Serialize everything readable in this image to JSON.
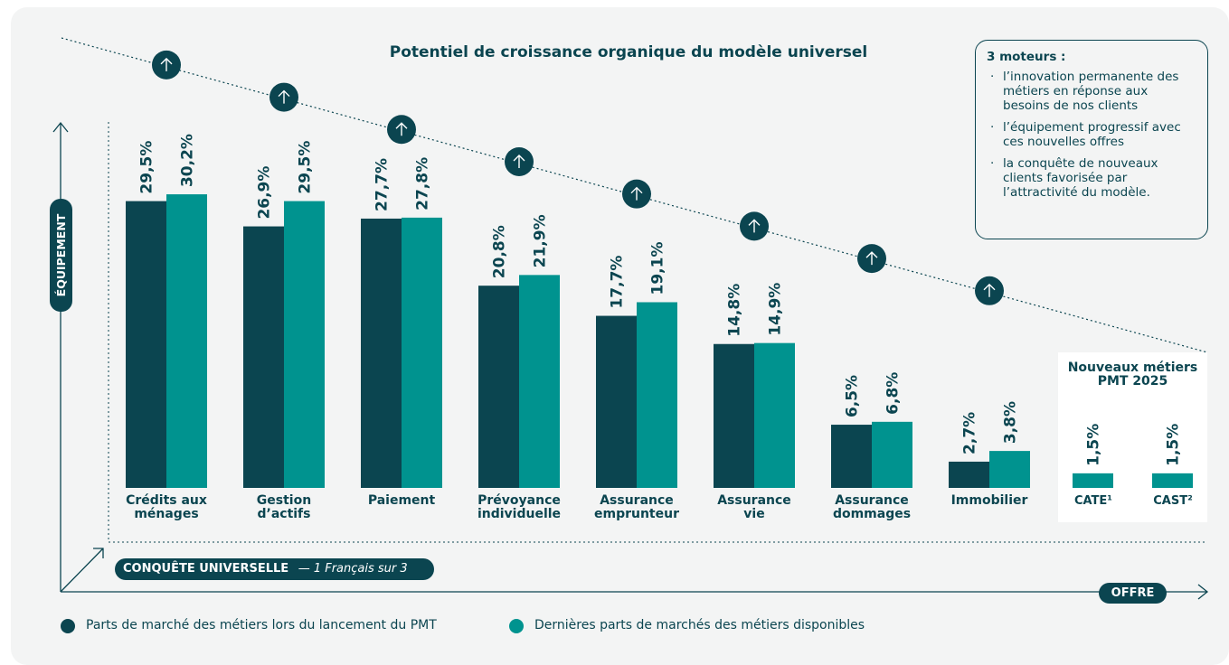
{
  "chart_data": [
    {
      "type": "bar",
      "title": "Potentiel de croissance organique du modèle universel",
      "categories": [
        "Crédits aux\nménages",
        "Gestion\nd’actifs",
        "Paiement",
        "Prévoyance\nindividuelle",
        "Assurance\nemprunteur",
        "Assurance\nvie",
        "Assurance\ndommages",
        "Immobilier"
      ],
      "series": [
        {
          "name": "Parts de marché des métiers lors du lancement du PMT",
          "color": "#0b4550",
          "values": [
            29.5,
            26.9,
            27.7,
            20.8,
            17.7,
            14.8,
            6.5,
            2.7
          ],
          "value_labels": [
            "29,5%",
            "26,9%",
            "27,7%",
            "20,8%",
            "17,7%",
            "14,8%",
            "6,5%",
            "2,7%"
          ]
        },
        {
          "name": "Dernières parts de marchés des métiers disponibles",
          "color": "#00938f",
          "values": [
            30.2,
            29.5,
            27.8,
            21.9,
            19.1,
            14.9,
            6.8,
            3.8
          ],
          "value_labels": [
            "30,2%",
            "29,5%",
            "27,8%",
            "21,9%",
            "19,1%",
            "14,9%",
            "6,8%",
            "3,8%"
          ]
        }
      ]
    },
    {
      "type": "bar",
      "title": "Nouveaux métiers\nPMT 2025",
      "categories": [
        "CATE¹",
        "CAST²"
      ],
      "color": "#00938f",
      "values": [
        1.5,
        1.5
      ],
      "value_labels": [
        "1,5%",
        "1,5%"
      ]
    }
  ],
  "motors": {
    "title": "3 moteurs :",
    "items": [
      "l’innovation permanente des métiers en réponse aux besoins de nos clients",
      "l’équipement progressif avec ces nouvelles offres",
      "la conquête de nouveaux clients favorisée par l’attractivité du modèle."
    ]
  },
  "axes": {
    "y_label": "ÉQUIPEMENT",
    "x_label": "OFFRE",
    "conquest": "CONQUÊTE UNIVERSELLE",
    "conquest_note": "— 1 Français sur 3"
  }
}
